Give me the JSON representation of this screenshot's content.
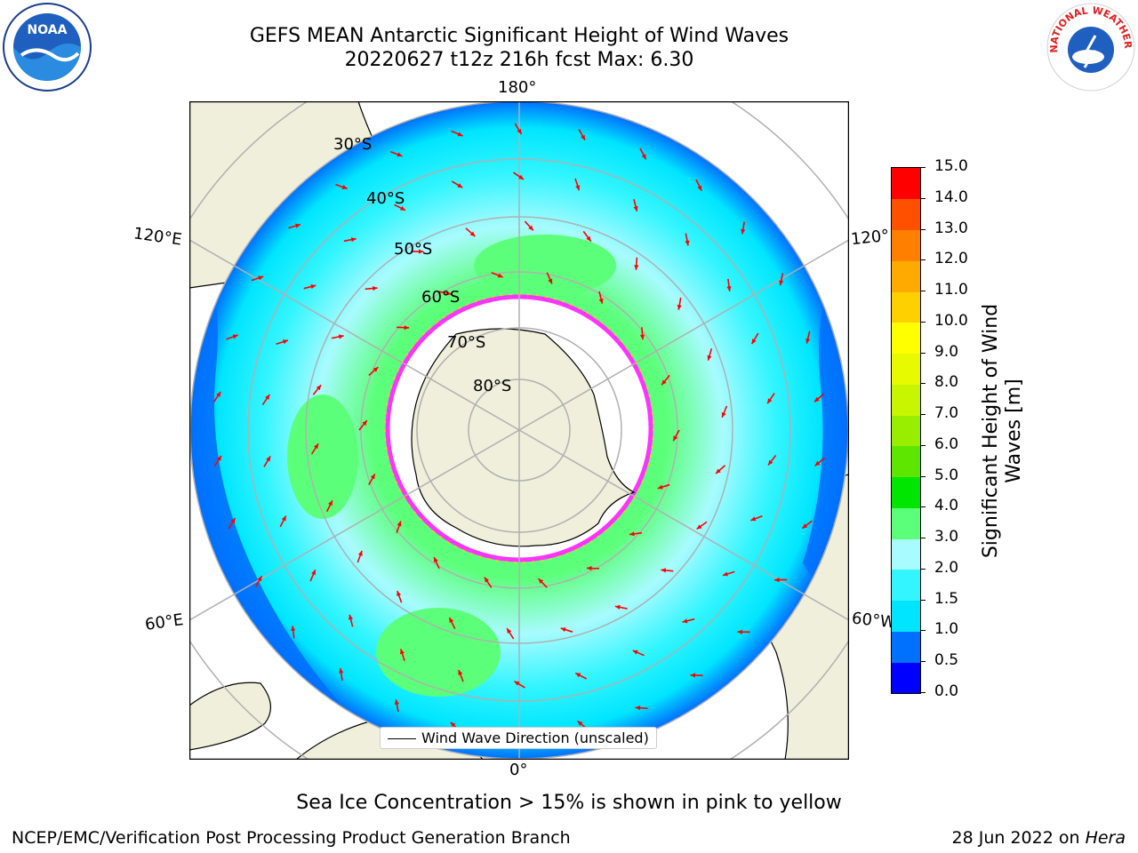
{
  "title": {
    "line1": "GEFS MEAN Antarctic Significant Height of Wind Waves",
    "line2": "20220627 t12z 216h fcst   Max: 6.30"
  },
  "map": {
    "longitude_labels": {
      "top": "180°",
      "bottom": "0°",
      "upper_left": "120°E",
      "lower_left": "60°E",
      "upper_right": "120°",
      "lower_right": "60°W"
    },
    "latitude_labels": [
      "30°S",
      "40°S",
      "50°S",
      "60°S",
      "70°S",
      "80°S"
    ],
    "legend_label": "Wind Wave Direction (unscaled)"
  },
  "colorbar": {
    "label_line1": "Significant Height of Wind",
    "label_line2": "Waves [m]",
    "ticks": [
      "0.0",
      "0.5",
      "1.0",
      "1.5",
      "2.0",
      "3.0",
      "4.0",
      "5.0",
      "6.0",
      "7.0",
      "8.0",
      "9.0",
      "10.0",
      "11.0",
      "12.0",
      "13.0",
      "14.0",
      "15.0"
    ],
    "colors": [
      "#0000ff",
      "#0070ff",
      "#00e5ff",
      "#33f5ff",
      "#a8fbff",
      "#5cff7a",
      "#00e600",
      "#5ee600",
      "#99ee00",
      "#c8f500",
      "#e8fa00",
      "#ffff00",
      "#ffd000",
      "#ffaa00",
      "#ff8000",
      "#ff5000",
      "#ff0000"
    ]
  },
  "annotation": "Sea Ice Concentration > 15% is shown in pink to yellow",
  "footer": {
    "left": "NCEP/EMC/Verification Post Processing Product Generation Branch",
    "right_prefix": "28 Jun 2022 on ",
    "right_host": "Hera"
  },
  "logos": {
    "left_text": "NOAA",
    "right_text": "NATIONAL WEATHER SERVICE"
  },
  "theme": {
    "land": "#efefdb",
    "ocean_low": "#33f5ff",
    "ocean_mid": "#a8fbff",
    "ocean_green": "#5cff7a",
    "ice_edge": "#ff33ff",
    "arrow": "#ff0000",
    "grid": "#b0b0b0"
  }
}
